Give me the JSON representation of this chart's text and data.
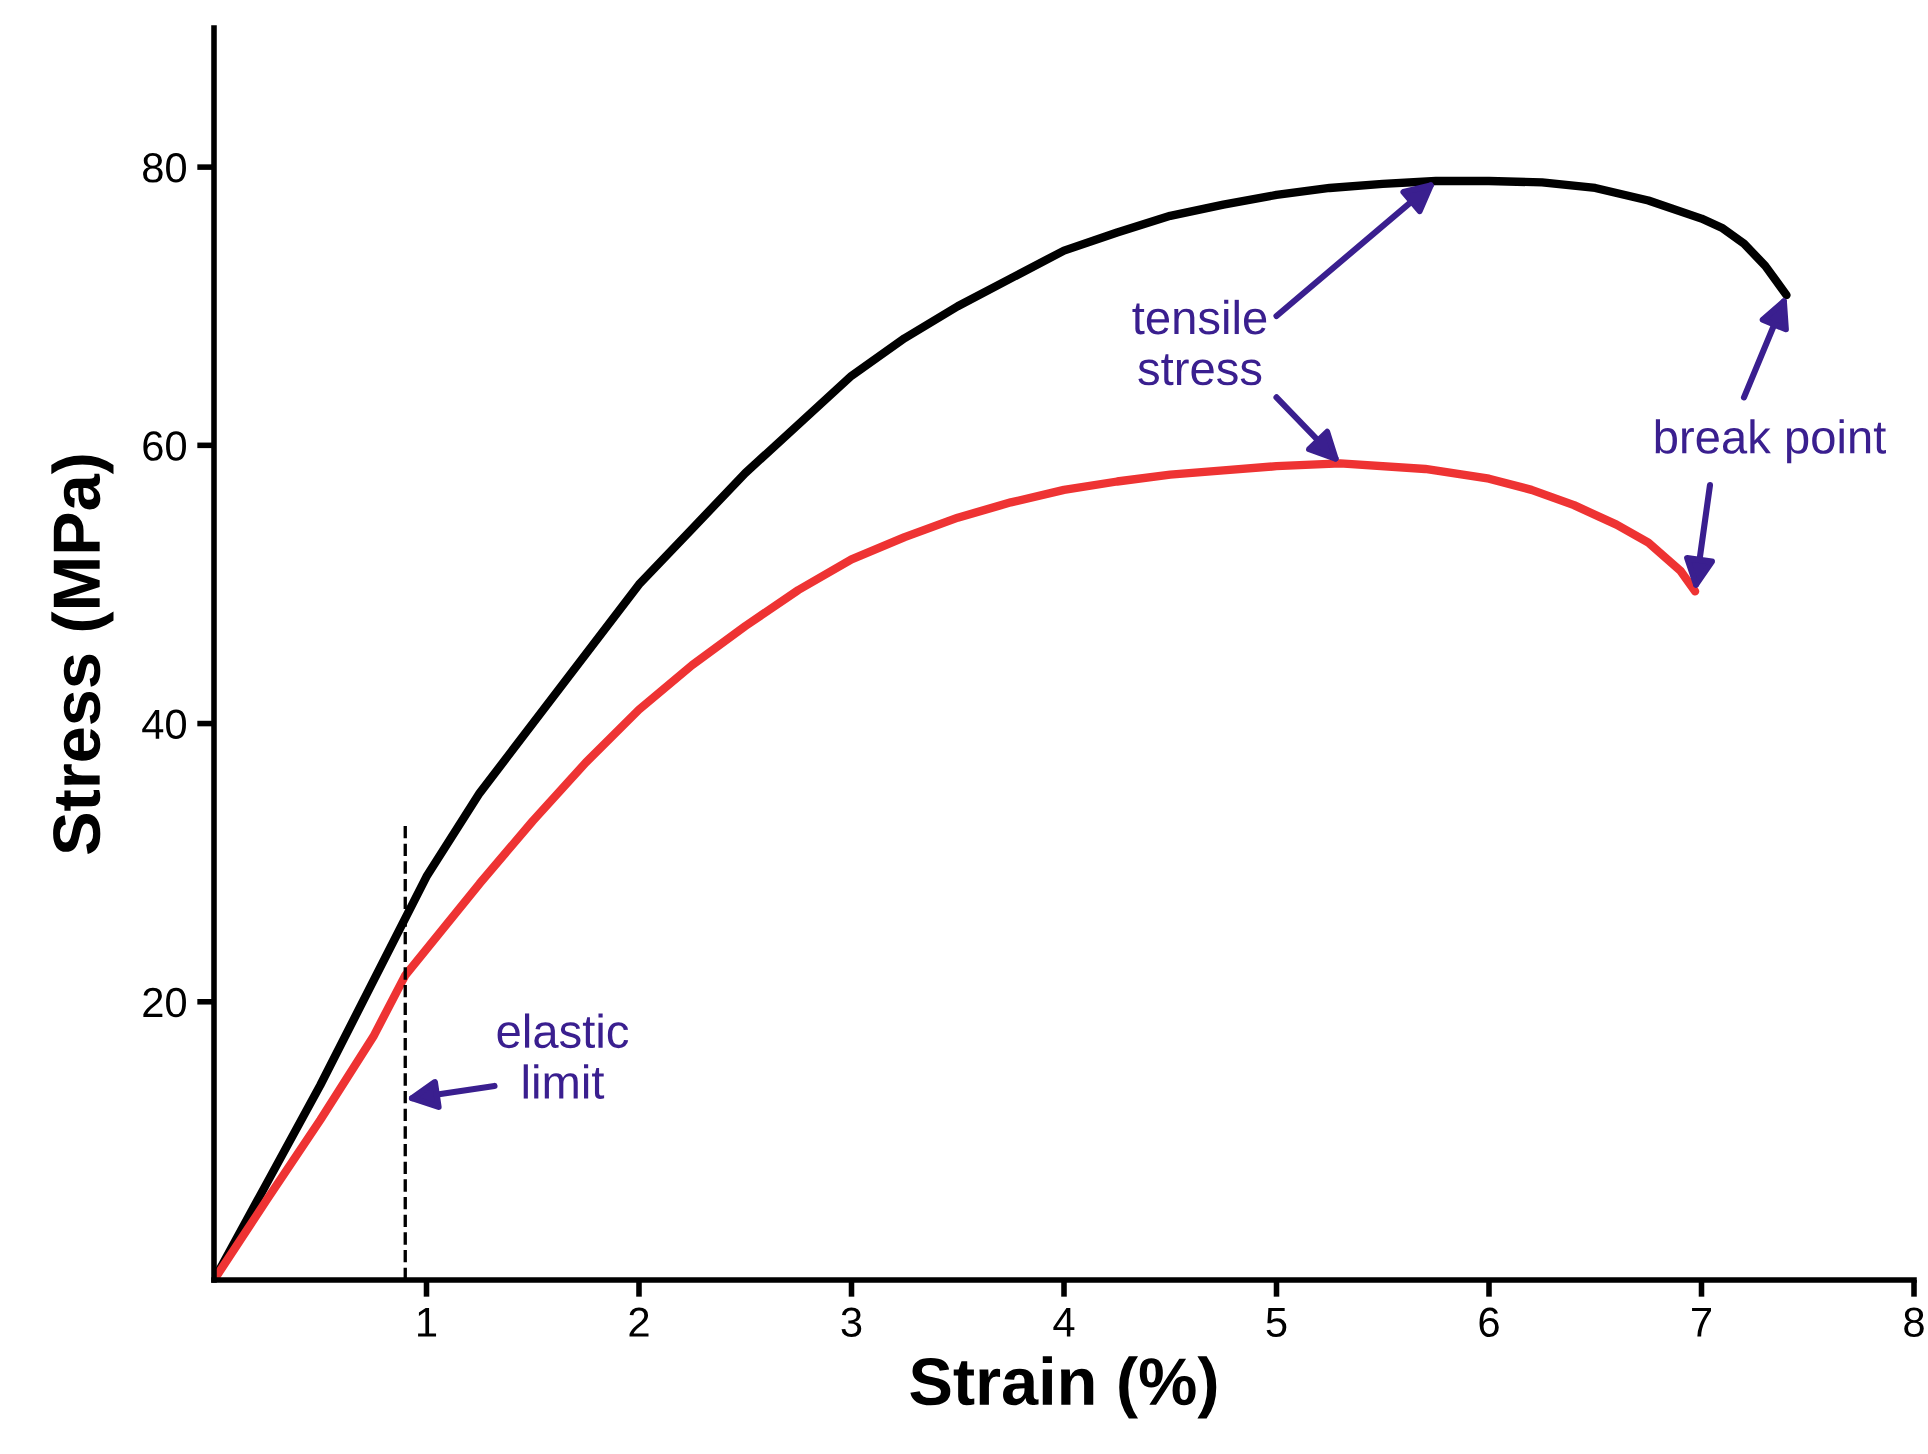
{
  "chart_data": {
    "type": "line",
    "xlabel": "Strain (%)",
    "ylabel": "Stress (MPa)",
    "xlim": [
      0,
      8
    ],
    "ylim": [
      0,
      90
    ],
    "xticks": [
      1,
      2,
      3,
      4,
      5,
      6,
      7,
      8
    ],
    "yticks": [
      20,
      40,
      60,
      80
    ],
    "grid": false,
    "series": [
      {
        "color": "#000000",
        "x": [
          0,
          0.25,
          0.5,
          0.75,
          1,
          1.25,
          1.5,
          1.75,
          2,
          2.25,
          2.5,
          2.75,
          3,
          3.25,
          3.5,
          3.75,
          4,
          4.25,
          4.5,
          4.75,
          5,
          5.25,
          5.5,
          5.75,
          6,
          6.25,
          6.5,
          6.75,
          7,
          7.1,
          7.2,
          7.3,
          7.4
        ],
        "values": [
          0,
          7,
          14,
          21.5,
          29,
          35,
          40,
          45,
          50,
          54,
          58,
          61.5,
          65,
          67.7,
          70,
          72,
          74,
          75.3,
          76.5,
          77.3,
          78,
          78.5,
          78.8,
          79,
          79,
          78.9,
          78.5,
          77.6,
          76.3,
          75.6,
          74.5,
          72.9,
          70.8
        ]
      },
      {
        "color": "#ee3333",
        "x": [
          0,
          0.25,
          0.5,
          0.75,
          0.9,
          1.25,
          1.5,
          1.75,
          2,
          2.25,
          2.5,
          2.75,
          3,
          3.25,
          3.5,
          3.75,
          4,
          4.25,
          4.5,
          4.75,
          5,
          5.3,
          5.7,
          6,
          6.2,
          6.4,
          6.6,
          6.75,
          6.9,
          6.97
        ],
        "values": [
          0,
          5.8,
          11.5,
          17.5,
          21.9,
          28.5,
          33,
          37.2,
          41,
          44.2,
          47,
          49.6,
          51.8,
          53.4,
          54.8,
          55.9,
          56.8,
          57.4,
          57.9,
          58.2,
          58.5,
          58.7,
          58.3,
          57.6,
          56.8,
          55.7,
          54.3,
          53,
          51,
          49.5
        ]
      },
      {
        "color": "#000000",
        "type": "line",
        "line_style": "dashed",
        "x": [
          0.9,
          0.9
        ],
        "values": [
          0,
          33
        ]
      }
    ],
    "annotations": [
      {
        "text": "elastic\nlimit",
        "x": 0.9,
        "y": 13
      },
      {
        "text": "tensile\nstress",
        "x": 5.75,
        "y": 79
      },
      {
        "text": "break point",
        "x": 7.4,
        "y": 70.8
      }
    ]
  }
}
